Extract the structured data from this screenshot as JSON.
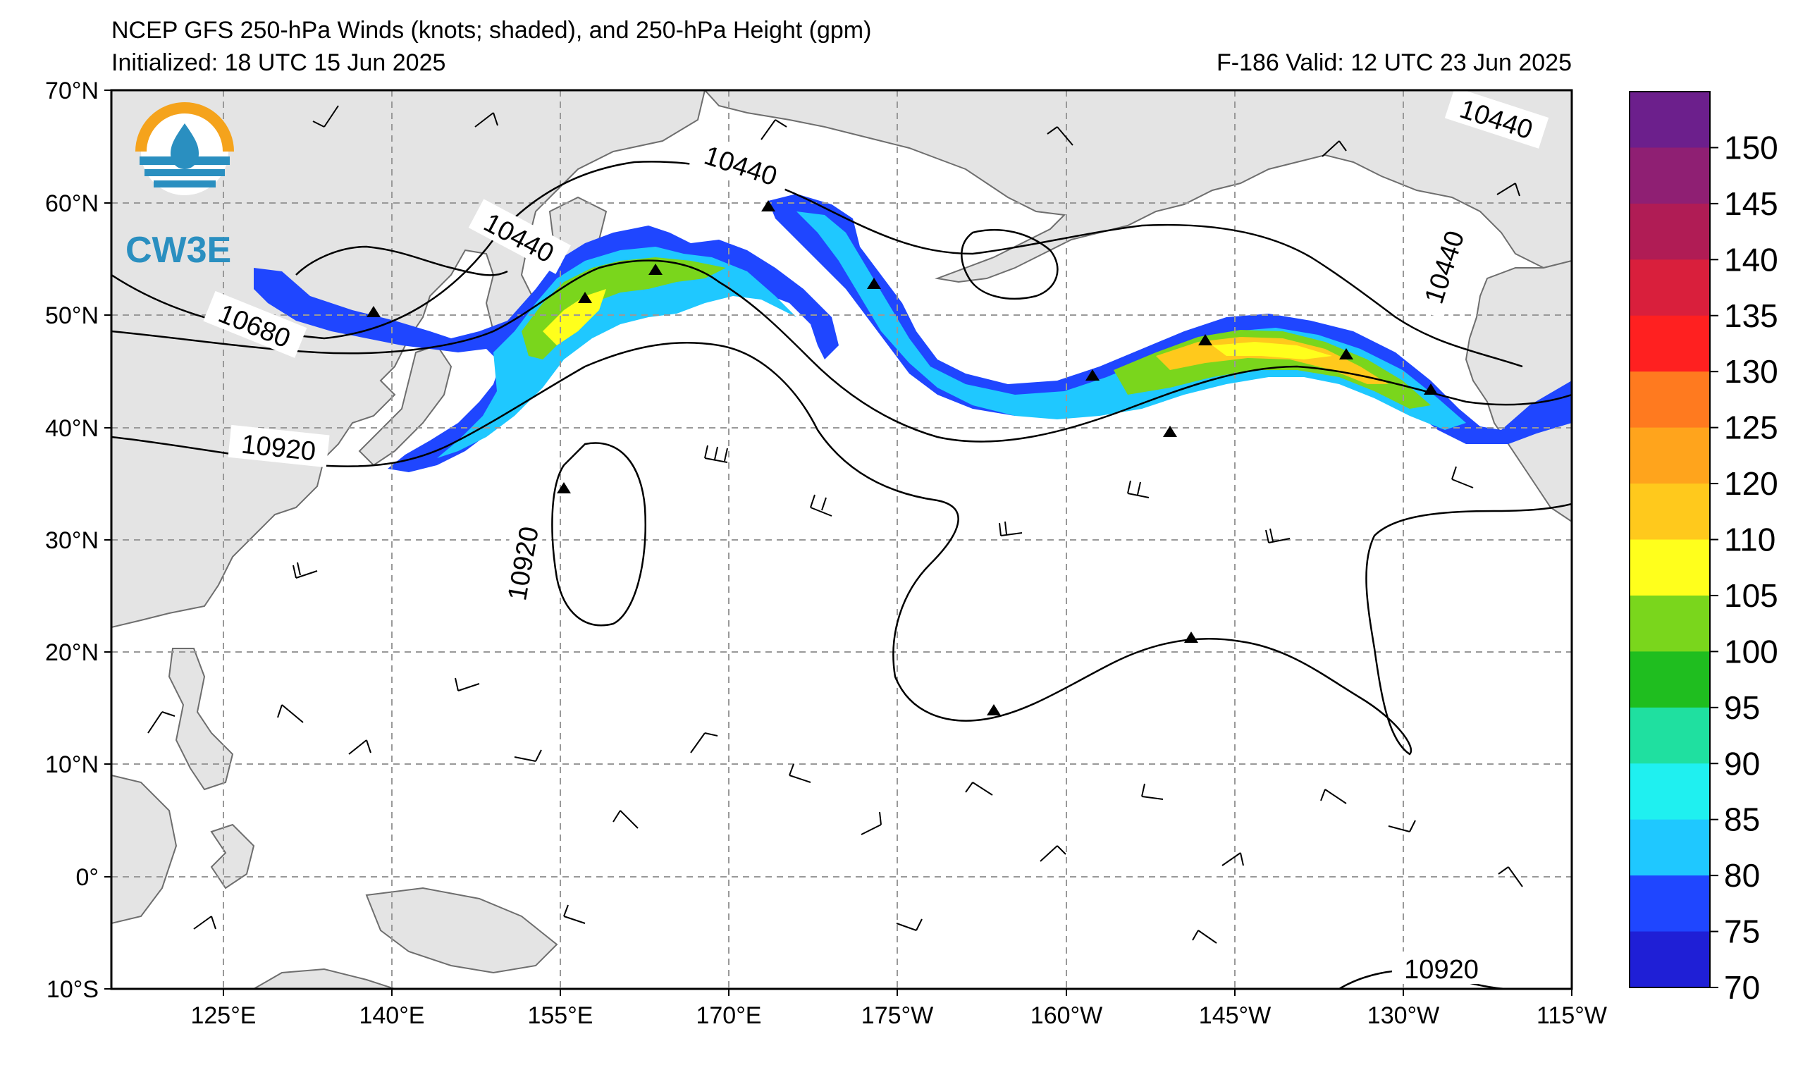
{
  "title": {
    "line1": "NCEP GFS 250-hPa Winds (knots; shaded), and 250-hPa Height (gpm)",
    "line2": "Initialized: 18 UTC 15 Jun 2025",
    "valid": "F-186  Valid: 12 UTC 23 Jun 2025"
  },
  "logo": {
    "text": "CW3E",
    "icon": "cw3e-water-drop-logo"
  },
  "lat_labels": [
    "70°N",
    "60°N",
    "50°N",
    "40°N",
    "30°N",
    "20°N",
    "10°N",
    "0°",
    "10°S"
  ],
  "lon_labels": [
    "125°E",
    "140°E",
    "155°E",
    "170°E",
    "175°W",
    "160°W",
    "145°W",
    "130°W",
    "115°W"
  ],
  "map_extent": {
    "lon_min": 115,
    "lon_max": 245,
    "lat_min": -10,
    "lat_max": 70
  },
  "colorbar": {
    "labels": [
      "150",
      "145",
      "140",
      "135",
      "130",
      "125",
      "120",
      "110",
      "105",
      "100",
      "95",
      "90",
      "85",
      "80",
      "75",
      "70"
    ],
    "colors": [
      "#6c1f8c",
      "#8f1f73",
      "#b01c55",
      "#d91f3c",
      "#ff2020",
      "#ff7a1f",
      "#ffa41c",
      "#ffc91c",
      "#ffff1c",
      "#7ad61c",
      "#1fbe1f",
      "#1fe0a0",
      "#1ff0f0",
      "#1fc8ff",
      "#1f46ff",
      "#1f1fd6"
    ]
  },
  "contours": {
    "labels": [
      "10440",
      "10440",
      "10440",
      "10440",
      "10680",
      "10920",
      "10920",
      "10920"
    ],
    "color": "#000000"
  },
  "colors": {
    "land": "#e4e4e4",
    "coast": "#6e6e6e",
    "grid": "#999999",
    "ocean": "#ffffff"
  }
}
